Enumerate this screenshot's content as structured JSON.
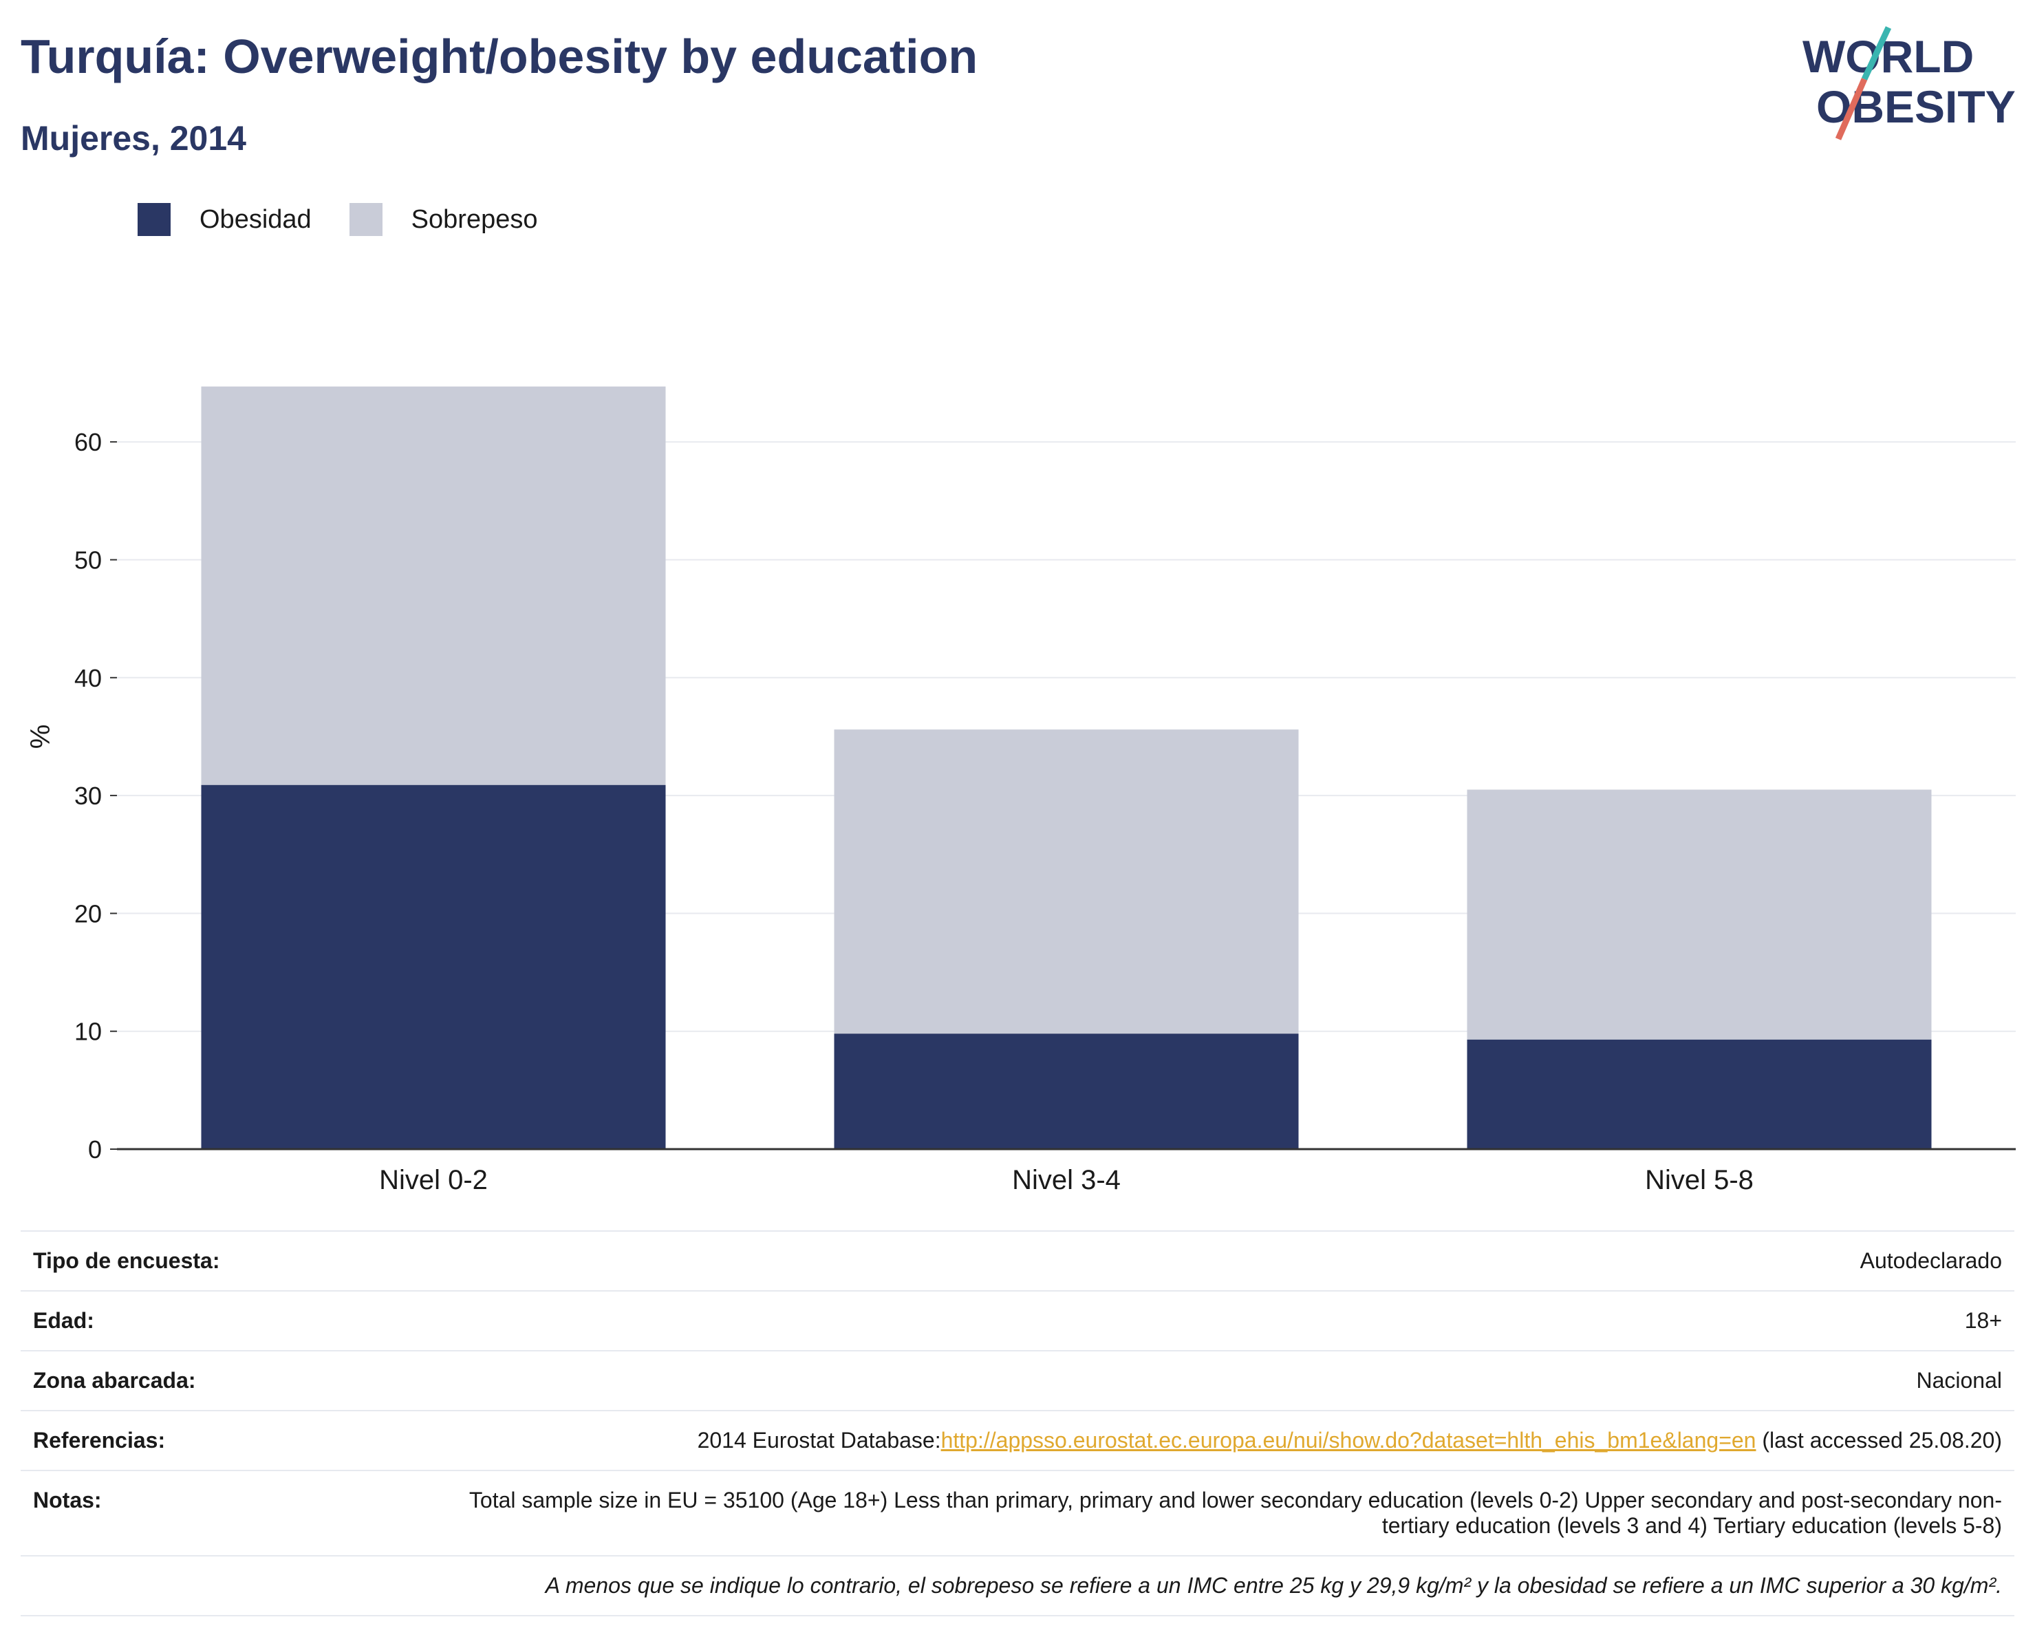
{
  "header": {
    "title": "Turquía: Overweight/obesity by education",
    "subtitle": "Mujeres, 2014",
    "logo_line1": "WORLD",
    "logo_line2": "OBESITY"
  },
  "colors": {
    "obesity": "#2a3764",
    "overweight": "#c9ccd8",
    "accent_teal": "#3ab5b0",
    "accent_coral": "#e06b5c",
    "link": "#e0a82e"
  },
  "chart_data": {
    "type": "bar",
    "stacked": true,
    "categories": [
      "Nivel 0-2",
      "Nivel 3-4",
      "Nivel 5-8"
    ],
    "series": [
      {
        "name": "Obesidad",
        "values": [
          30.9,
          9.8,
          9.3
        ]
      },
      {
        "name": "Sobrepeso",
        "values": [
          33.8,
          25.8,
          21.2
        ]
      }
    ],
    "ylabel": "%",
    "ylim": [
      0,
      70
    ],
    "yticks": [
      0,
      10,
      20,
      30,
      40,
      50,
      60
    ],
    "grid": true,
    "legend": "top-left"
  },
  "info": {
    "survey_label": "Tipo de encuesta:",
    "survey_value": "Autodeclarado",
    "age_label": "Edad:",
    "age_value": "18+",
    "area_label": "Zona abarcada:",
    "area_value": "Nacional",
    "ref_label": "Referencias:",
    "ref_prefix": "2014 Eurostat Database:",
    "ref_link": "http://appsso.eurostat.ec.europa.eu/nui/show.do?dataset=hlth_ehis_bm1e&lang=en",
    "ref_suffix": " (last accessed 25.08.20)",
    "notes_label": "Notas:",
    "notes_value": "Total sample size in EU = 35100 (Age 18+) Less than primary, primary and lower secondary education (levels 0-2) Upper secondary and post-secondary non-tertiary education (levels 3 and 4) Tertiary education (levels 5-8)",
    "footnote": "A menos que se indique lo contrario, el sobrepeso se refiere a un IMC entre 25 kg y 29,9 kg/m² y la obesidad se refiere a un IMC superior a 30 kg/m²."
  }
}
